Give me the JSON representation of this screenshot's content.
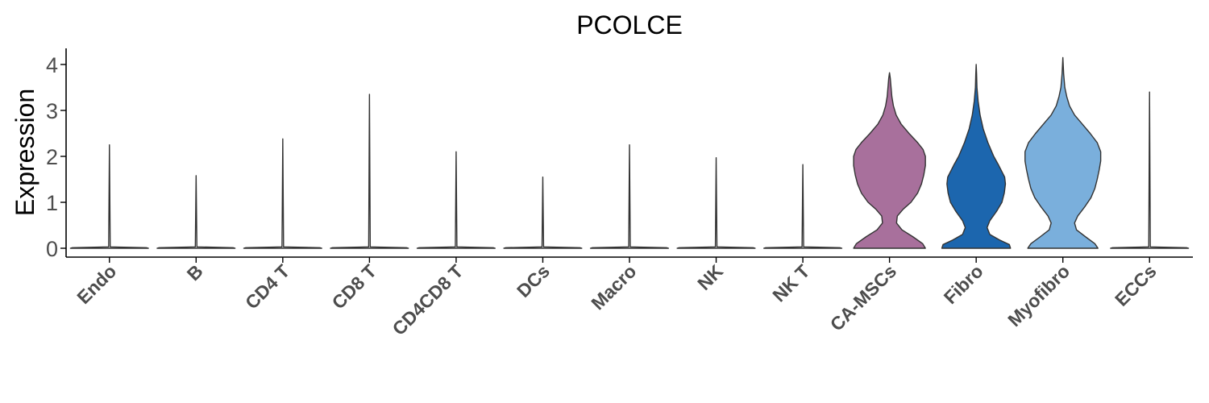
{
  "chart_data": {
    "type": "violin",
    "title": "PCOLCE",
    "xlabel": "",
    "ylabel": "Expression",
    "ylim": [
      -0.2,
      4.2
    ],
    "yticks": [
      0,
      1,
      2,
      3,
      4
    ],
    "grid": false,
    "legend": "none",
    "categories": [
      "Endo",
      "B",
      "CD4 T",
      "CD8 T",
      "CD4CD8 T",
      "DCs",
      "Macro",
      "NK",
      "NK T",
      "CA-MSCs",
      "Fibro",
      "Myofibro",
      "ECCs"
    ],
    "max_values": [
      2.25,
      1.58,
      2.38,
      3.35,
      2.1,
      1.55,
      2.25,
      1.97,
      1.82,
      3.82,
      4.0,
      4.15,
      3.4
    ],
    "colors": [
      "#ffffff",
      "#ffffff",
      "#ffffff",
      "#ffffff",
      "#ffffff",
      "#ffffff",
      "#ffffff",
      "#ffffff",
      "#ffffff",
      "#a8709c",
      "#1c66ae",
      "#7aafdc",
      "#ffffff"
    ],
    "density_profiles": {
      "CA-MSCs": [
        [
          0,
          0.92
        ],
        [
          0.1,
          0.85
        ],
        [
          0.25,
          0.6
        ],
        [
          0.4,
          0.32
        ],
        [
          0.55,
          0.18
        ],
        [
          0.7,
          0.2
        ],
        [
          0.85,
          0.35
        ],
        [
          1.0,
          0.55
        ],
        [
          1.2,
          0.72
        ],
        [
          1.4,
          0.82
        ],
        [
          1.6,
          0.88
        ],
        [
          1.8,
          0.92
        ],
        [
          2.0,
          0.92
        ],
        [
          2.15,
          0.86
        ],
        [
          2.3,
          0.72
        ],
        [
          2.5,
          0.5
        ],
        [
          2.7,
          0.3
        ],
        [
          2.9,
          0.17
        ],
        [
          3.1,
          0.1
        ],
        [
          3.3,
          0.06
        ],
        [
          3.5,
          0.04
        ],
        [
          3.7,
          0.02
        ],
        [
          3.82,
          0.0
        ]
      ],
      "Fibro": [
        [
          0,
          0.88
        ],
        [
          0.08,
          0.85
        ],
        [
          0.18,
          0.6
        ],
        [
          0.3,
          0.35
        ],
        [
          0.45,
          0.28
        ],
        [
          0.6,
          0.35
        ],
        [
          0.8,
          0.52
        ],
        [
          1.0,
          0.66
        ],
        [
          1.2,
          0.72
        ],
        [
          1.4,
          0.75
        ],
        [
          1.55,
          0.73
        ],
        [
          1.8,
          0.58
        ],
        [
          2.0,
          0.45
        ],
        [
          2.3,
          0.3
        ],
        [
          2.6,
          0.18
        ],
        [
          2.9,
          0.1
        ],
        [
          3.2,
          0.05
        ],
        [
          3.5,
          0.02
        ],
        [
          3.8,
          0.01
        ],
        [
          4.0,
          0.0
        ]
      ],
      "Myofibro": [
        [
          0,
          0.9
        ],
        [
          0.1,
          0.82
        ],
        [
          0.25,
          0.58
        ],
        [
          0.4,
          0.35
        ],
        [
          0.55,
          0.3
        ],
        [
          0.7,
          0.38
        ],
        [
          0.9,
          0.56
        ],
        [
          1.1,
          0.72
        ],
        [
          1.3,
          0.82
        ],
        [
          1.5,
          0.88
        ],
        [
          1.7,
          0.93
        ],
        [
          1.9,
          0.97
        ],
        [
          2.1,
          0.97
        ],
        [
          2.3,
          0.88
        ],
        [
          2.5,
          0.7
        ],
        [
          2.7,
          0.5
        ],
        [
          2.9,
          0.3
        ],
        [
          3.1,
          0.17
        ],
        [
          3.3,
          0.1
        ],
        [
          3.5,
          0.05
        ],
        [
          3.8,
          0.02
        ],
        [
          4.15,
          0.0
        ]
      ]
    }
  }
}
